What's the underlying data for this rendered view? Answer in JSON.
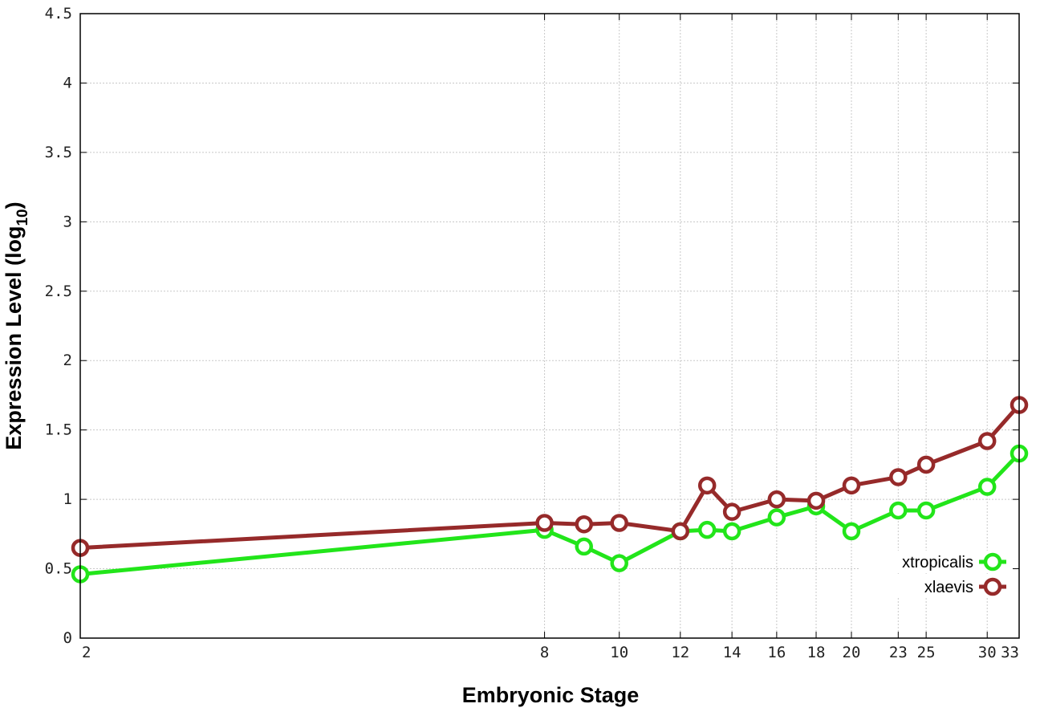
{
  "chart_data": {
    "type": "line",
    "title": "",
    "xlabel": "Embryonic Stage",
    "ylabel": {
      "main": "Expression Level (log",
      "sub": "10",
      "close": ")"
    },
    "x_ticks": [
      2,
      8,
      10,
      12,
      14,
      16,
      18,
      20,
      23,
      25,
      30,
      33
    ],
    "y_ticks": [
      "0",
      "0.5",
      "1",
      "1.5",
      "2",
      "2.5",
      "3",
      "3.5",
      "4",
      "4.5"
    ],
    "x_scale": "log",
    "xlim": [
      2,
      33
    ],
    "ylim": [
      0,
      4.5
    ],
    "grid": true,
    "legend_position": "bottom-right",
    "x": [
      2,
      8,
      9,
      10,
      12,
      13,
      14,
      16,
      18,
      20,
      23,
      25,
      30,
      33
    ],
    "series": [
      {
        "name": "xtropicalis",
        "color": "#22e51a",
        "values": [
          0.46,
          0.78,
          0.66,
          0.54,
          0.77,
          0.78,
          0.77,
          0.87,
          0.95,
          0.77,
          0.92,
          0.92,
          1.09,
          1.33
        ]
      },
      {
        "name": "xlaevis",
        "color": "#962a2a",
        "values": [
          0.65,
          0.83,
          0.82,
          0.83,
          0.77,
          1.1,
          0.91,
          1.0,
          0.99,
          1.1,
          1.16,
          1.25,
          1.42,
          1.68
        ]
      }
    ]
  }
}
